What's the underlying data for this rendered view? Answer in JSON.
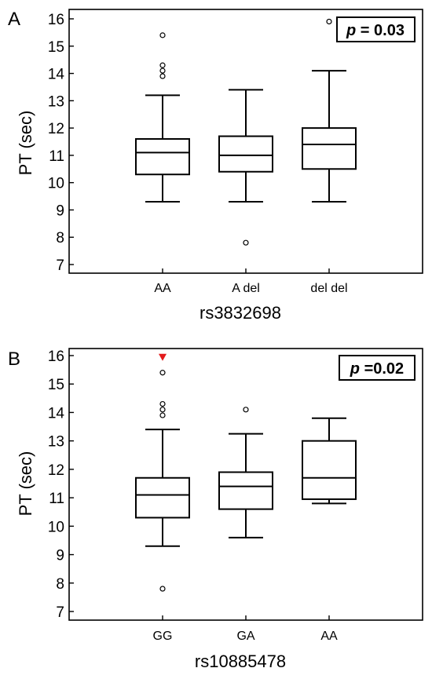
{
  "chart_data": [
    {
      "type": "box",
      "panel_label": "A",
      "title": "",
      "xlabel": "rs3832698",
      "ylabel": "PT (sec)",
      "ylim": [
        6.7,
        16.3
      ],
      "yticks": [
        7,
        8,
        9,
        10,
        11,
        12,
        13,
        14,
        15,
        16
      ],
      "annotation": "p = 0.03",
      "annotation_p": "p",
      "annotation_rest": " = 0.03",
      "grid": false,
      "categories": [
        "AA",
        "A del",
        "del del"
      ],
      "boxes": [
        {
          "category": "AA",
          "whisker_low": 9.3,
          "q1": 10.3,
          "median": 11.1,
          "q3": 11.6,
          "whisker_high": 13.2,
          "outliers": [
            13.9,
            14.1,
            14.3,
            15.4
          ]
        },
        {
          "category": "A del",
          "whisker_low": 9.3,
          "q1": 10.4,
          "median": 11.0,
          "q3": 11.7,
          "whisker_high": 13.4,
          "outliers": [
            7.8
          ]
        },
        {
          "category": "del del",
          "whisker_low": 9.3,
          "q1": 10.5,
          "median": 11.4,
          "q3": 12.0,
          "whisker_high": 14.1,
          "outliers": [
            15.9
          ]
        }
      ],
      "marker_color": "#000000"
    },
    {
      "type": "box",
      "panel_label": "B",
      "title": "",
      "xlabel": "rs10885478",
      "ylabel": "PT (sec)",
      "ylim": [
        6.7,
        16.3
      ],
      "yticks": [
        7,
        8,
        9,
        10,
        11,
        12,
        13,
        14,
        15,
        16
      ],
      "annotation": "p =0.02",
      "annotation_p": "p",
      "annotation_rest": " =0.02",
      "grid": false,
      "categories": [
        "GG",
        "GA",
        "AA"
      ],
      "boxes": [
        {
          "category": "GG",
          "whisker_low": 9.3,
          "q1": 10.3,
          "median": 11.1,
          "q3": 11.7,
          "whisker_high": 13.4,
          "outliers": [
            7.8,
            13.9,
            14.1,
            14.3,
            15.4
          ],
          "highlight_marker": 15.95
        },
        {
          "category": "GA",
          "whisker_low": 9.6,
          "q1": 10.6,
          "median": 11.4,
          "q3": 11.9,
          "whisker_high": 13.25,
          "outliers": [
            14.1
          ]
        },
        {
          "category": "AA",
          "whisker_low": 10.8,
          "q1": 10.95,
          "median": 11.7,
          "q3": 13.0,
          "whisker_high": 13.8,
          "outliers": []
        }
      ],
      "highlight_color": "#e31a1c"
    }
  ]
}
